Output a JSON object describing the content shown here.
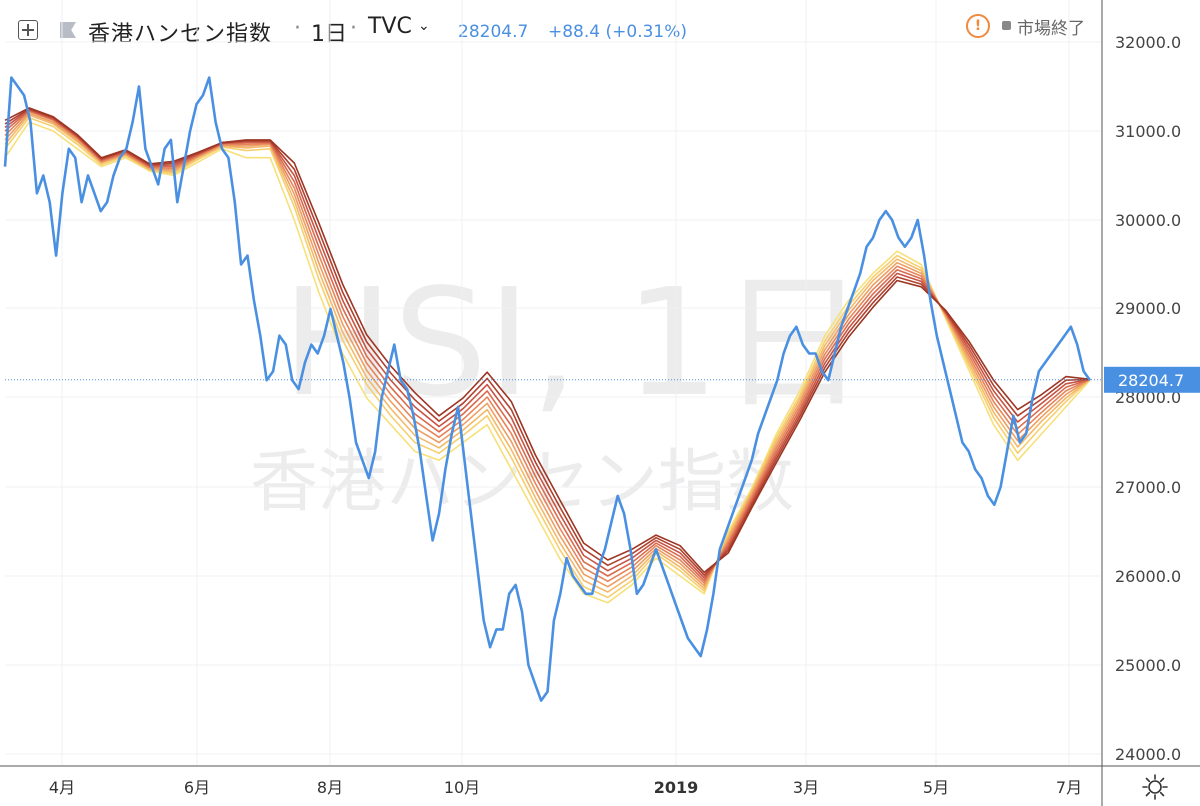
{
  "header": {
    "symbol_name": "香港ハンセン指数",
    "interval": "1日",
    "source": "TVC",
    "price": "28204.7",
    "change": "+88.4 (+0.31%)",
    "market_status": "市場終了",
    "separator": "·"
  },
  "watermark": {
    "symbol": "HSI, 1日",
    "name": "香港ハンセン指数"
  },
  "colors": {
    "price_line": "#4a90e2",
    "ribbon": [
      "#f7e07a",
      "#f6cf6e",
      "#f3b96a",
      "#ee9e62",
      "#e6855a",
      "#d96b4f",
      "#c75444",
      "#b0412e",
      "#9c3522"
    ],
    "grid": "#eef0f3",
    "price_label_bg": "#4a90e2"
  },
  "chart_data": {
    "type": "line",
    "x_ticks": [
      "4月",
      "6月",
      "8月",
      "10月",
      "2019",
      "3月",
      "5月",
      "7月"
    ],
    "y_ticks": [
      "32000.0",
      "31000.0",
      "30000.0",
      "29000.0",
      "28000.0",
      "27000.0",
      "26000.0",
      "25000.0",
      "24000.0"
    ],
    "ylim": [
      23800,
      32350
    ],
    "last_price_label": "28204.7",
    "series": [
      {
        "values": [
          30600,
          31600,
          31500,
          31400,
          31100,
          30300,
          30500,
          30200,
          29600,
          30300,
          30800,
          30700,
          30200,
          30500,
          30300,
          30100,
          30200,
          30500,
          30700,
          30800,
          31100,
          31500,
          30800,
          30600,
          30400,
          30800,
          30900,
          30200,
          30600,
          31000,
          31300,
          31400,
          31600,
          31100,
          30800,
          30700,
          30200,
          29500,
          29600,
          29100,
          28700,
          28200,
          28300,
          28700,
          28600,
          28200,
          28100,
          28400,
          28600,
          28500,
          28700,
          29000,
          28700,
          28400,
          28000,
          27500,
          27300,
          27100,
          27400,
          28000,
          28300,
          28600,
          28200,
          28100,
          27800,
          27400,
          26900,
          26400,
          26700,
          27200,
          27600,
          27900,
          27300,
          26700,
          26100,
          25500,
          25200,
          25400,
          25400,
          25800,
          25900,
          25600,
          25000,
          24800,
          24600,
          24700,
          25500,
          25800,
          26200,
          26000,
          25900,
          25800,
          25800,
          26100,
          26300,
          26600,
          26900,
          26700,
          26300,
          25800,
          25900,
          26100,
          26300,
          26100,
          25900,
          25700,
          25500,
          25300,
          25200,
          25100,
          25400,
          25800,
          26300,
          26500,
          26700,
          26900,
          27100,
          27300,
          27600,
          27800,
          28000,
          28200,
          28500,
          28700,
          28800,
          28600,
          28500,
          28500,
          28300,
          28200,
          28500,
          28800,
          29000,
          29200,
          29400,
          29700,
          29800,
          30000,
          30100,
          30000,
          29800,
          29700,
          29800,
          30000,
          29600,
          29100,
          28700,
          28400,
          28100,
          27800,
          27500,
          27400,
          27200,
          27100,
          26900,
          26800,
          27000,
          27400,
          27800,
          27500,
          27600,
          28000,
          28300,
          28400,
          28500,
          28600,
          28700,
          28800,
          28600,
          28300,
          28200
        ]
      },
      {
        "values": [
          30700,
          31100,
          31000,
          30800,
          30600,
          30700,
          30550,
          30500,
          30650,
          30800,
          30700,
          30700,
          30000,
          29200,
          28500,
          28000,
          27700,
          27400,
          27300,
          27500,
          27700,
          27200,
          26700,
          26200,
          25800,
          25700,
          25900,
          26200,
          26000,
          25800,
          26500,
          27000,
          27600,
          28100,
          28700,
          29100,
          29400,
          29650,
          29500,
          28900,
          28300,
          27700,
          27300,
          27600,
          27900,
          28200
        ]
      },
      {
        "values": [
          30800,
          31150,
          31050,
          30850,
          30620,
          30720,
          30560,
          30520,
          30680,
          30820,
          30780,
          30800,
          30150,
          29350,
          28650,
          28150,
          27800,
          27500,
          27380,
          27580,
          27800,
          27330,
          26800,
          26300,
          25880,
          25760,
          25950,
          26250,
          26060,
          25830,
          26470,
          26980,
          27560,
          28050,
          28640,
          29040,
          29360,
          29600,
          29460,
          28920,
          28350,
          27780,
          27380,
          27680,
          27960,
          28210
        ]
      },
      {
        "values": [
          30850,
          31180,
          31080,
          30880,
          30640,
          30730,
          30570,
          30540,
          30700,
          30830,
          30810,
          30830,
          30220,
          29440,
          28740,
          28230,
          27880,
          27580,
          27440,
          27640,
          27870,
          27420,
          26880,
          26380,
          25950,
          25820,
          26000,
          26280,
          26100,
          25860,
          26440,
          26960,
          27520,
          28010,
          28590,
          28990,
          29320,
          29560,
          29430,
          28930,
          28390,
          27840,
          27450,
          27740,
          28000,
          28210
        ]
      },
      {
        "values": [
          30900,
          31200,
          31100,
          30900,
          30650,
          30740,
          30580,
          30560,
          30710,
          30840,
          30830,
          30850,
          30290,
          29530,
          28830,
          28310,
          27960,
          27660,
          27500,
          27700,
          27940,
          27510,
          26960,
          26460,
          26020,
          25880,
          26050,
          26310,
          26140,
          25890,
          26410,
          26930,
          27480,
          27970,
          28540,
          28940,
          29270,
          29520,
          29400,
          28940,
          28430,
          27900,
          27520,
          27790,
          28040,
          28210
        ]
      },
      {
        "values": [
          30950,
          31220,
          31120,
          30920,
          30660,
          30750,
          30590,
          30580,
          30720,
          30850,
          30850,
          30860,
          30360,
          29620,
          28920,
          28390,
          28040,
          27740,
          27560,
          27760,
          28010,
          27600,
          27040,
          26540,
          26090,
          25940,
          26100,
          26340,
          26180,
          25920,
          26380,
          26900,
          27440,
          27930,
          28490,
          28890,
          29220,
          29480,
          29370,
          28950,
          28470,
          27960,
          27590,
          27840,
          28080,
          28210
        ]
      },
      {
        "values": [
          31000,
          31230,
          31130,
          30930,
          30670,
          30760,
          30600,
          30600,
          30730,
          30860,
          30870,
          30870,
          30430,
          29710,
          29010,
          28470,
          28120,
          27820,
          27620,
          27820,
          28080,
          27690,
          27120,
          26620,
          26160,
          26000,
          26150,
          26370,
          26220,
          25950,
          26350,
          26870,
          27400,
          27890,
          28440,
          28840,
          29170,
          29440,
          29340,
          28960,
          28510,
          28020,
          27660,
          27890,
          28120,
          28210
        ]
      },
      {
        "values": [
          31040,
          31240,
          31140,
          30940,
          30680,
          30770,
          30610,
          30620,
          30740,
          30860,
          30880,
          30880,
          30500,
          29800,
          29100,
          28550,
          28200,
          27900,
          27680,
          27880,
          28150,
          27780,
          27200,
          26700,
          26230,
          26060,
          26200,
          26400,
          26260,
          25980,
          26320,
          26840,
          27360,
          27850,
          28390,
          28790,
          29120,
          29400,
          29310,
          28970,
          28550,
          28080,
          27730,
          27940,
          28160,
          28210
        ]
      },
      {
        "values": [
          31080,
          31250,
          31150,
          30950,
          30690,
          30780,
          30620,
          30640,
          30750,
          30870,
          30890,
          30890,
          30570,
          29890,
          29190,
          28630,
          28280,
          27980,
          27740,
          27940,
          28220,
          27870,
          27280,
          26780,
          26300,
          26120,
          26250,
          26430,
          26300,
          26010,
          26290,
          26810,
          27320,
          27810,
          28340,
          28740,
          29070,
          29360,
          29280,
          28980,
          28590,
          28140,
          27800,
          27990,
          28200,
          28210
        ]
      },
      {
        "values": [
          31120,
          31260,
          31160,
          30960,
          30700,
          30790,
          30630,
          30660,
          30760,
          30870,
          30900,
          30900,
          30640,
          29980,
          29280,
          28710,
          28360,
          28060,
          27800,
          28000,
          28290,
          27960,
          27360,
          26860,
          26370,
          26180,
          26300,
          26460,
          26340,
          26040,
          26260,
          26780,
          27280,
          27770,
          28290,
          28690,
          29020,
          29320,
          29250,
          28990,
          28630,
          28200,
          27870,
          28040,
          28240,
          28210
        ]
      }
    ]
  }
}
